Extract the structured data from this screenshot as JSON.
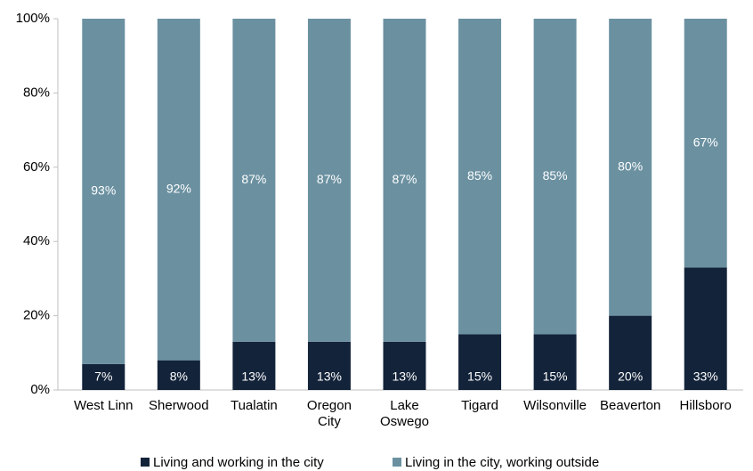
{
  "chart_data": {
    "type": "stacked_bar",
    "categories": [
      "West Linn",
      "Sherwood",
      "Tualatin",
      "Oregon\nCity",
      "Lake\nOswego",
      "Tigard",
      "Wilsonville",
      "Beaverton",
      "Hillsboro"
    ],
    "series": [
      {
        "name": "Living and working in the city",
        "color": "#13233a",
        "values": [
          7,
          8,
          13,
          13,
          13,
          15,
          15,
          20,
          33
        ],
        "value_labels": [
          "7%",
          "8%",
          "13%",
          "13%",
          "13%",
          "15%",
          "15%",
          "20%",
          "33%"
        ]
      },
      {
        "name": "Living in the city, working outside",
        "color": "#6b91a1",
        "values": [
          93,
          92,
          87,
          87,
          87,
          85,
          85,
          80,
          67
        ],
        "value_labels": [
          "93%",
          "92%",
          "87%",
          "87%",
          "87%",
          "85%",
          "85%",
          "80%",
          "67%"
        ]
      }
    ],
    "ylim": [
      0,
      100
    ],
    "yticks": [
      {
        "value": 0,
        "label": "0%"
      },
      {
        "value": 20,
        "label": "20%"
      },
      {
        "value": 40,
        "label": "40%"
      },
      {
        "value": 60,
        "label": "60%"
      },
      {
        "value": 80,
        "label": "80%"
      },
      {
        "value": 100,
        "label": "100%"
      }
    ],
    "legend": "bottom"
  }
}
